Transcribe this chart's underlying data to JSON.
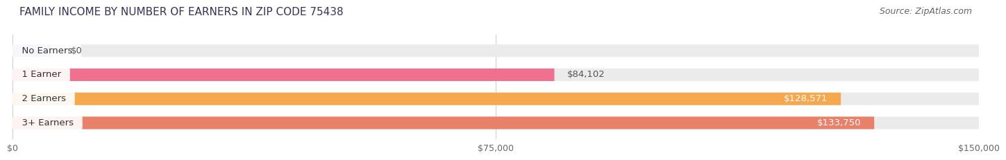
{
  "title": "FAMILY INCOME BY NUMBER OF EARNERS IN ZIP CODE 75438",
  "source": "Source: ZipAtlas.com",
  "categories": [
    "No Earners",
    "1 Earner",
    "2 Earners",
    "3+ Earners"
  ],
  "values": [
    0,
    84102,
    128571,
    133750
  ],
  "bar_colors": [
    "#a8a8d8",
    "#f07090",
    "#f5a84e",
    "#e8806a"
  ],
  "bar_bg_color": "#ebebeb",
  "value_labels": [
    "$0",
    "$84,102",
    "$128,571",
    "$133,750"
  ],
  "value_label_inside": [
    false,
    false,
    true,
    true
  ],
  "value_label_colors_inside": [
    "#555555",
    "#555555",
    "#ffffff",
    "#ffffff"
  ],
  "xlim": [
    0,
    150000
  ],
  "xticks": [
    0,
    75000,
    150000
  ],
  "xtick_labels": [
    "$0",
    "$75,000",
    "$150,000"
  ],
  "title_fontsize": 11,
  "source_fontsize": 9,
  "label_fontsize": 9.5,
  "tick_fontsize": 9,
  "background_color": "#ffffff",
  "no_earners_stub": 6000
}
